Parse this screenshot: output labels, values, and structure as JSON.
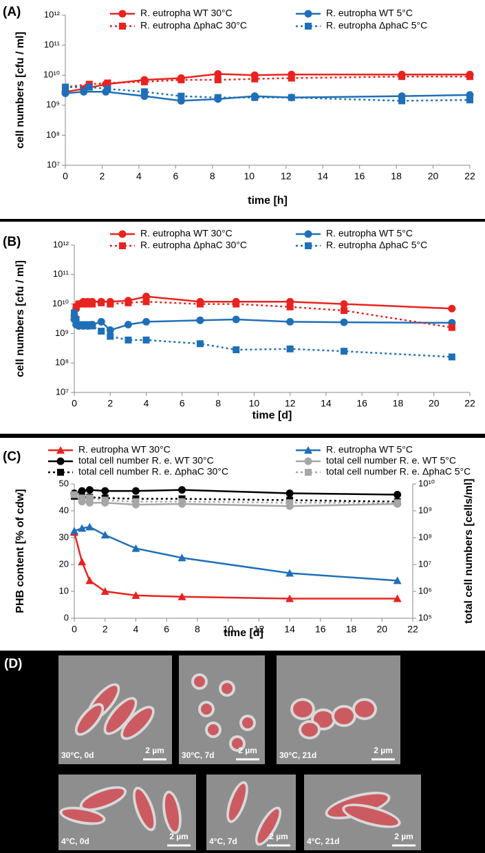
{
  "chart_data": [
    {
      "type": "line",
      "label": "(A)",
      "ylabel": "cell numbers [cfu / ml]",
      "xlabel": "time [h]",
      "xlim": [
        0,
        22
      ],
      "xticks": [
        0,
        2,
        4,
        6,
        8,
        10,
        12,
        14,
        16,
        18,
        20,
        22
      ],
      "ylim": [
        10000000,
        1000000000000
      ],
      "ylog": true,
      "yticks": [
        {
          "value": 10000000,
          "label": "10⁷"
        },
        {
          "value": 100000000,
          "label": "10⁸"
        },
        {
          "value": 1000000000,
          "label": "10⁹"
        },
        {
          "value": 10000000000,
          "label": "10¹⁰"
        },
        {
          "value": 100000000000,
          "label": "10¹¹"
        },
        {
          "value": 1000000000000,
          "label": "10¹²"
        }
      ],
      "series": [
        {
          "name": "R. eutropha WT 30°C",
          "color": "#e8231f",
          "marker": "circle",
          "line_style": "solid",
          "x": [
            0,
            1,
            2.2,
            4.3,
            6.3,
            8.3,
            10.3,
            12.3,
            18.3,
            22
          ],
          "values": [
            2800000000,
            3500000000,
            5000000000,
            7000000000,
            8000000000,
            11000000000,
            10000000000,
            10500000000,
            10500000000,
            10500000000
          ]
        },
        {
          "name": "R. eutropha WT 5°C",
          "color": "#1f6fb8",
          "marker": "circle",
          "line_style": "solid",
          "x": [
            0,
            1,
            2.2,
            4.3,
            6.3,
            8.3,
            10.3,
            12.3,
            18.3,
            22
          ],
          "values": [
            2500000000,
            2800000000,
            2800000000,
            2000000000,
            1400000000,
            1600000000,
            2000000000,
            1800000000,
            2000000000,
            2200000000
          ]
        },
        {
          "name": "R. eutropha ΔphaC 30°C",
          "color": "#e8231f",
          "marker": "square",
          "line_style": "dotted",
          "x": [
            0,
            1.3,
            2.3,
            4.3,
            6.3,
            8.3,
            10.3,
            12.3,
            18.3,
            22
          ],
          "values": [
            4000000000,
            5000000000,
            5500000000,
            6000000000,
            7000000000,
            7000000000,
            7500000000,
            8000000000,
            9000000000,
            9000000000
          ]
        },
        {
          "name": "R. eutropha ΔphaC 5°C",
          "color": "#1f6fb8",
          "marker": "square",
          "line_style": "dotted",
          "x": [
            0,
            1.3,
            2.3,
            4.3,
            6.3,
            8.3,
            10.3,
            12.3,
            18.3,
            22
          ],
          "values": [
            4000000000,
            4000000000,
            3500000000,
            2800000000,
            2000000000,
            1800000000,
            1800000000,
            1800000000,
            1400000000,
            1500000000
          ]
        }
      ]
    },
    {
      "type": "line",
      "label": "(B)",
      "ylabel": "cell numbers [cfu / ml]",
      "xlabel": "time [d]",
      "xlim": [
        0,
        22
      ],
      "xticks": [
        0,
        2,
        4,
        6,
        8,
        10,
        12,
        14,
        16,
        18,
        20,
        22
      ],
      "ylim": [
        10000000,
        1000000000000
      ],
      "ylog": true,
      "yticks": [
        {
          "value": 10000000,
          "label": "10⁷"
        },
        {
          "value": 100000000,
          "label": "10⁸"
        },
        {
          "value": 1000000000,
          "label": "10⁹"
        },
        {
          "value": 10000000000,
          "label": "10¹⁰"
        },
        {
          "value": 100000000000,
          "label": "10¹¹"
        },
        {
          "value": 1000000000000,
          "label": "10¹²"
        }
      ],
      "series": [
        {
          "name": "R. eutropha WT 30°C",
          "color": "#e8231f",
          "marker": "circle",
          "line_style": "solid",
          "x": [
            0,
            0.1,
            0.25,
            0.5,
            0.75,
            1,
            1.5,
            2,
            3,
            4,
            7,
            9,
            12,
            15,
            21
          ],
          "values": [
            4000000000,
            7000000000,
            10000000000,
            12000000000,
            12000000000,
            12000000000,
            12000000000,
            12000000000,
            13000000000,
            18000000000,
            12000000000,
            12000000000,
            12000000000,
            10000000000,
            7000000000
          ]
        },
        {
          "name": "R. eutropha WT 5°C",
          "color": "#1f6fb8",
          "marker": "circle",
          "line_style": "solid",
          "x": [
            0,
            0.1,
            0.25,
            0.5,
            0.75,
            1,
            1.5,
            2,
            3,
            4,
            7,
            9,
            12,
            15,
            21
          ],
          "values": [
            3000000000,
            2000000000,
            1800000000,
            1800000000,
            1800000000,
            2000000000,
            2500000000,
            1300000000,
            2000000000,
            2500000000,
            2800000000,
            3000000000,
            2500000000,
            2400000000,
            2300000000
          ]
        },
        {
          "name": "R. eutropha ΔphaC 30°C",
          "color": "#e8231f",
          "marker": "square",
          "line_style": "dotted",
          "x": [
            0,
            0.1,
            0.25,
            0.5,
            0.75,
            1,
            1.5,
            2,
            3,
            4,
            7,
            9,
            12,
            15,
            21
          ],
          "values": [
            5000000000,
            8000000000,
            10000000000,
            10000000000,
            10000000000,
            10000000000,
            11000000000,
            10000000000,
            11000000000,
            12000000000,
            10000000000,
            10000000000,
            8000000000,
            6000000000,
            1600000000
          ]
        },
        {
          "name": "R. eutropha ΔphaC 5°C",
          "color": "#1f6fb8",
          "marker": "square",
          "line_style": "dotted",
          "x": [
            0,
            0.1,
            0.25,
            0.5,
            0.75,
            1,
            1.5,
            2,
            3,
            4,
            7,
            9,
            12,
            15,
            21
          ],
          "values": [
            5000000000,
            3000000000,
            2000000000,
            2000000000,
            2000000000,
            1800000000,
            1200000000,
            800000000,
            600000000,
            600000000,
            450000000,
            280000000,
            300000000,
            250000000,
            160000000
          ]
        }
      ]
    },
    {
      "type": "line",
      "label": "(C)",
      "ylabel": "PHB content [% of cdw]",
      "xlabel": "time [d]",
      "y2label": "total cell numbers [cells/ml]",
      "xlim": [
        0,
        22
      ],
      "xticks": [
        0,
        2,
        4,
        6,
        8,
        10,
        12,
        14,
        16,
        18,
        20,
        22
      ],
      "ylim": [
        0,
        50
      ],
      "yticks": [
        0,
        10,
        20,
        30,
        40,
        50
      ],
      "y2lim": [
        100000,
        10000000000
      ],
      "y2log": true,
      "y2ticks": [
        {
          "value": 100000,
          "label": "10⁵"
        },
        {
          "value": 1000000,
          "label": "10⁶"
        },
        {
          "value": 10000000,
          "label": "10⁷"
        },
        {
          "value": 100000000,
          "label": "10⁸"
        },
        {
          "value": 1000000000,
          "label": "10⁹"
        },
        {
          "value": 10000000000,
          "label": "10¹⁰"
        }
      ],
      "series": [
        {
          "name": "R. eutropha WT 30°C",
          "color": "#e8231f",
          "marker": "triangle",
          "line_style": "solid",
          "x": [
            0,
            0.5,
            1,
            2,
            4,
            7,
            14,
            21
          ],
          "values": [
            32,
            21,
            14,
            10,
            8.5,
            8,
            7.3,
            7.3
          ]
        },
        {
          "name": "R. eutropha WT 5°C",
          "color": "#1f6fb8",
          "marker": "triangle",
          "line_style": "solid",
          "x": [
            0,
            0.5,
            1,
            2,
            4,
            7,
            14,
            21
          ],
          "values": [
            32.5,
            33.5,
            34,
            31,
            26,
            22.5,
            16.8,
            14
          ]
        },
        {
          "name": "total cell number R. e. WT 30°C",
          "color": "#000000",
          "marker": "circle",
          "line_style": "solid",
          "axis": "y2",
          "x": [
            0,
            0.5,
            1,
            2,
            4,
            7,
            14,
            21
          ],
          "values": [
            4500000000,
            5500000000,
            6000000000,
            5500000000,
            5500000000,
            6000000000,
            4500000000,
            4000000000
          ]
        },
        {
          "name": "total cell number R. e. WT 5°C",
          "color": "#a6a6a6",
          "marker": "circle",
          "line_style": "solid",
          "axis": "y2",
          "x": [
            0,
            0.5,
            1,
            2,
            4,
            7,
            14,
            21
          ],
          "values": [
            3500000000,
            2200000000,
            2000000000,
            2000000000,
            1700000000,
            1800000000,
            1500000000,
            1800000000
          ]
        },
        {
          "name": "total cell number R. e. ΔphaC 30°C",
          "color": "#000000",
          "marker": "square",
          "line_style": "dotted",
          "axis": "y2",
          "x": [
            0,
            0.5,
            1,
            2,
            4,
            7,
            14,
            21
          ],
          "values": [
            3500000000,
            3200000000,
            3200000000,
            3000000000,
            2800000000,
            2800000000,
            2500000000,
            2200000000
          ]
        },
        {
          "name": "total cell number R. e. ΔphaC 5°C",
          "color": "#a6a6a6",
          "marker": "square",
          "line_style": "dotted",
          "axis": "y2",
          "x": [
            0,
            0.5,
            1,
            2,
            4,
            7,
            14,
            21
          ],
          "values": [
            4000000000,
            3000000000,
            3000000000,
            2500000000,
            2200000000,
            2200000000,
            2000000000,
            2000000000
          ]
        }
      ]
    }
  ],
  "micrographs": {
    "label": "(D)",
    "images": [
      {
        "caption": "30°C, 0d",
        "scale": "2 µm"
      },
      {
        "caption": "30°C, 7d",
        "scale": "2 µm"
      },
      {
        "caption": "30°C, 21d",
        "scale": "2 µm"
      },
      {
        "caption": "4°C, 0d",
        "scale": "2 µm"
      },
      {
        "caption": "4°C, 7d",
        "scale": "2 µm"
      },
      {
        "caption": "4°C, 21d",
        "scale": "2 µm"
      }
    ]
  }
}
